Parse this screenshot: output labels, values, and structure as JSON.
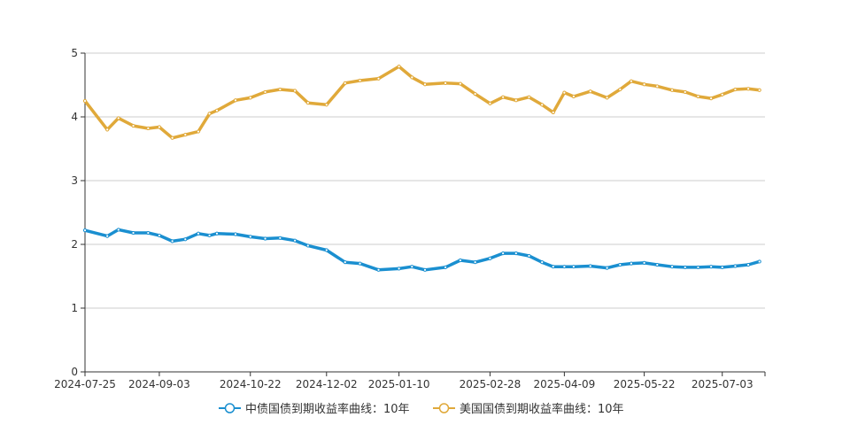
{
  "chart_data": {
    "type": "line",
    "x": [
      "2024-07-25",
      "2024-08-06",
      "2024-08-12",
      "2024-08-20",
      "2024-08-28",
      "2024-09-03",
      "2024-09-10",
      "2024-09-17",
      "2024-09-24",
      "2024-09-30",
      "2024-10-04",
      "2024-10-14",
      "2024-10-22",
      "2024-10-30",
      "2024-11-07",
      "2024-11-15",
      "2024-11-22",
      "2024-12-02",
      "2024-12-12",
      "2024-12-20",
      "2024-12-30",
      "2025-01-10",
      "2025-01-17",
      "2025-01-24",
      "2025-02-04",
      "2025-02-12",
      "2025-02-20",
      "2025-02-28",
      "2025-03-07",
      "2025-03-14",
      "2025-03-21",
      "2025-03-28",
      "2025-04-03",
      "2025-04-09",
      "2025-04-14",
      "2025-04-23",
      "2025-05-02",
      "2025-05-09",
      "2025-05-15",
      "2025-05-22",
      "2025-05-29",
      "2025-06-06",
      "2025-06-13",
      "2025-06-20",
      "2025-06-27",
      "2025-07-03",
      "2025-07-10",
      "2025-07-17",
      "2025-07-23"
    ],
    "ylim": [
      0,
      5
    ],
    "yticks": [
      "0",
      "1",
      "2",
      "3",
      "4",
      "5"
    ],
    "xticks": [
      "2024-07-25",
      "2024-09-03",
      "2024-10-22",
      "2024-12-02",
      "2025-01-10",
      "2025-02-28",
      "2025-04-09",
      "2025-05-22",
      "2025-07-03"
    ],
    "grid": true,
    "legend_position": "bottom",
    "series": [
      {
        "name": "中债国债到期收益率曲线：10年",
        "color": "#1a8fd0",
        "values": [
          2.22,
          2.13,
          2.23,
          2.18,
          2.18,
          2.14,
          2.05,
          2.08,
          2.17,
          2.14,
          2.17,
          2.16,
          2.12,
          2.09,
          2.1,
          2.06,
          1.98,
          1.91,
          1.72,
          1.7,
          1.6,
          1.62,
          1.65,
          1.6,
          1.64,
          1.75,
          1.72,
          1.78,
          1.86,
          1.86,
          1.82,
          1.72,
          1.65,
          1.65,
          1.65,
          1.66,
          1.63,
          1.68,
          1.7,
          1.71,
          1.68,
          1.65,
          1.64,
          1.64,
          1.65,
          1.64,
          1.66,
          1.68,
          1.73
        ]
      },
      {
        "name": "美国国债到期收益率曲线：10年",
        "color": "#e0a93a",
        "values": [
          4.25,
          3.8,
          3.98,
          3.86,
          3.82,
          3.84,
          3.67,
          3.72,
          3.77,
          4.05,
          4.1,
          4.26,
          4.3,
          4.39,
          4.43,
          4.41,
          4.22,
          4.19,
          4.53,
          4.57,
          4.6,
          4.79,
          4.62,
          4.51,
          4.53,
          4.52,
          4.36,
          4.21,
          4.31,
          4.26,
          4.31,
          4.19,
          4.07,
          4.38,
          4.32,
          4.4,
          4.3,
          4.43,
          4.56,
          4.51,
          4.48,
          4.42,
          4.39,
          4.32,
          4.29,
          4.35,
          4.43,
          4.44,
          4.42
        ]
      }
    ]
  }
}
